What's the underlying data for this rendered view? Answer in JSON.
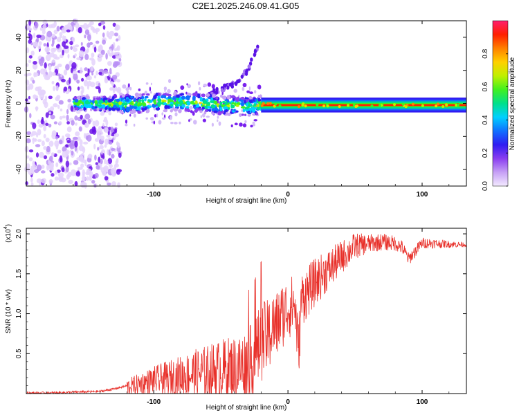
{
  "title": "C2E1.2025.246.09.41.G05",
  "chart_data": [
    {
      "type": "heatmap",
      "xlabel": "Height of straight line (km)",
      "ylabel": "Frequency (Hz)",
      "xlim": [
        -195,
        133
      ],
      "ylim": [
        -50,
        50
      ],
      "xticks": [
        -100,
        0,
        100
      ],
      "yticks": [
        -40,
        -20,
        0,
        20,
        40
      ],
      "colorbar": {
        "label": "Normalized spectral amplitude",
        "range": [
          0,
          1
        ],
        "ticks": [
          "0.0",
          "0.2",
          "0.4",
          "0.6",
          "0.8"
        ],
        "tick_values": [
          0.0,
          0.2,
          0.4,
          0.6,
          0.8
        ],
        "colors": [
          "#f3eaff",
          "#c6a0f5",
          "#8a3df0",
          "#2f1cf2",
          "#1070ff",
          "#00d0ff",
          "#00e08a",
          "#40f020",
          "#c0f000",
          "#ffd000",
          "#ff8000",
          "#ff2000",
          "#ff1f6e"
        ]
      },
      "features": {
        "noise_region_x": [
          -195,
          -125
        ],
        "carrier_track": [
          [
            -160,
            0
          ],
          [
            -120,
            -0.5
          ],
          [
            -90,
            1
          ],
          [
            -70,
            0.5
          ],
          [
            -50,
            -1
          ],
          [
            -30,
            -2
          ],
          [
            -20,
            -1
          ],
          [
            0,
            -1
          ],
          [
            133,
            -1
          ]
        ],
        "harmonic_branch": [
          [
            -60,
            5
          ],
          [
            -40,
            12
          ],
          [
            -30,
            20
          ],
          [
            -25,
            30
          ],
          [
            -22,
            34
          ]
        ]
      }
    },
    {
      "type": "line",
      "xlabel": "Height of straight line (km)",
      "ylabel": "SNR (10 * v/v)",
      "yscale_label": "(x10",
      "yscale_exp": "4",
      "xlim": [
        -195,
        133
      ],
      "ylim": [
        0,
        2.07
      ],
      "xticks": [
        -100,
        0,
        100
      ],
      "yticks": [
        0.5,
        1.0,
        1.5,
        2.0
      ],
      "ytick_labels": [
        "0.5",
        "1.0",
        "1.5",
        "2.0"
      ],
      "color": "#e8302a",
      "series": [
        {
          "name": "SNR",
          "x": [
            -195,
            -180,
            -160,
            -140,
            -130,
            -120,
            -110,
            -100,
            -90,
            -80,
            -70,
            -60,
            -50,
            -40,
            -30,
            -25,
            -20,
            -15,
            -12,
            -8,
            -5,
            0,
            5,
            8,
            10,
            15,
            20,
            30,
            40,
            50,
            60,
            70,
            80,
            85,
            90,
            100,
            110,
            120,
            133
          ],
          "y": [
            0.01,
            0.01,
            0.02,
            0.03,
            0.06,
            0.1,
            0.15,
            0.2,
            0.23,
            0.27,
            0.31,
            0.34,
            0.38,
            0.4,
            0.45,
            0.55,
            0.75,
            0.8,
            0.9,
            0.95,
            1.05,
            1.15,
            1.2,
            0.6,
            1.25,
            1.35,
            1.45,
            1.6,
            1.75,
            1.88,
            1.9,
            1.92,
            1.9,
            1.85,
            1.7,
            1.9,
            1.89,
            1.88,
            1.87
          ]
        }
      ],
      "noise_amplitude_x": [
        -120,
        -20,
        10,
        60,
        133
      ],
      "noise_amplitude": [
        0.1,
        0.5,
        0.35,
        0.12,
        0.03
      ]
    }
  ]
}
